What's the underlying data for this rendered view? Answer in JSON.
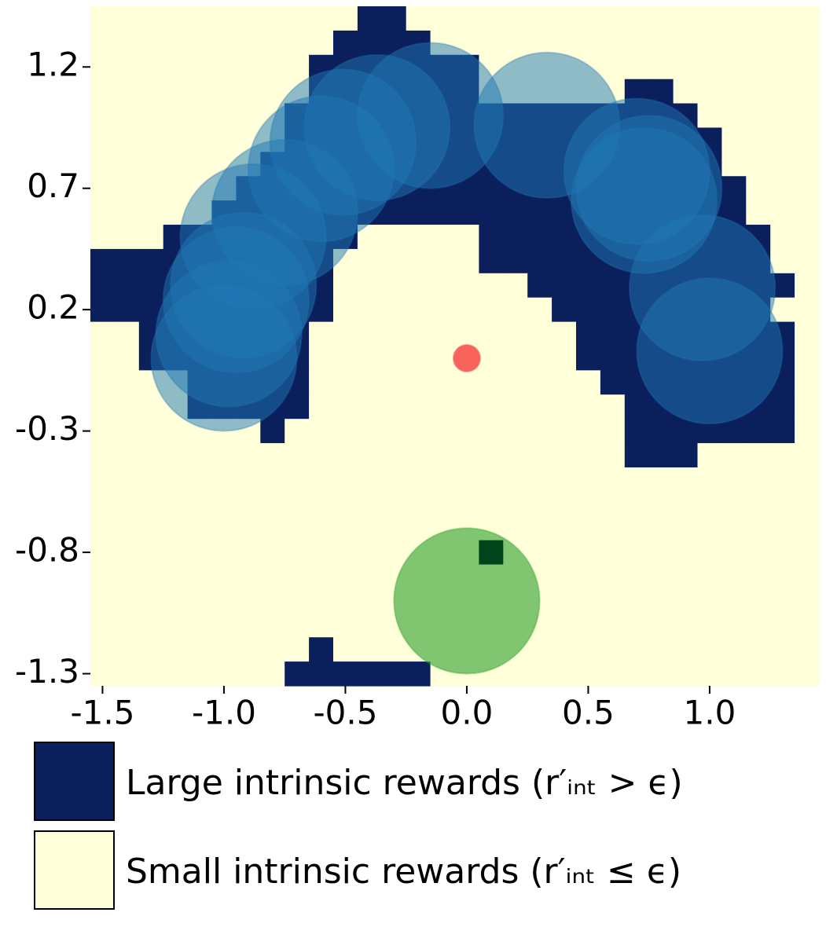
{
  "chart_data": {
    "type": "grid-map",
    "xlim": [
      -1.55,
      1.45
    ],
    "ylim": [
      -1.35,
      1.45
    ],
    "xticks": [
      -1.5,
      {
        "value": -1.0,
        "label": "-1.0"
      },
      -0.5,
      {
        "value": 0.0,
        "label": "0.0"
      },
      0.5,
      {
        "value": 1.0,
        "label": "1.0"
      }
    ],
    "yticks": [
      1.2,
      0.7,
      0.2,
      -0.3,
      -0.8,
      -1.3
    ],
    "z": [
      [
        0,
        0,
        0,
        0,
        0,
        0,
        0,
        0,
        0,
        0,
        0,
        1,
        1,
        0,
        0,
        0,
        0,
        0,
        0,
        0,
        0,
        0,
        0,
        0,
        0,
        0,
        0,
        0,
        0,
        0
      ],
      [
        0,
        0,
        0,
        0,
        0,
        0,
        0,
        0,
        0,
        0,
        1,
        1,
        1,
        1,
        0,
        0,
        0,
        0,
        0,
        0,
        0,
        0,
        0,
        0,
        0,
        0,
        0,
        0,
        0,
        0
      ],
      [
        0,
        0,
        0,
        0,
        0,
        0,
        0,
        0,
        0,
        1,
        1,
        1,
        1,
        1,
        1,
        1,
        0,
        0,
        0,
        0,
        0,
        0,
        0,
        0,
        0,
        0,
        0,
        0,
        0,
        0
      ],
      [
        0,
        0,
        0,
        0,
        0,
        0,
        0,
        0,
        0,
        1,
        1,
        1,
        1,
        1,
        1,
        1,
        0,
        0,
        0,
        0,
        0,
        0,
        1,
        1,
        0,
        0,
        0,
        0,
        0,
        0
      ],
      [
        0,
        0,
        0,
        0,
        0,
        0,
        0,
        0,
        1,
        1,
        1,
        1,
        1,
        1,
        1,
        1,
        1,
        1,
        1,
        1,
        1,
        1,
        1,
        1,
        1,
        0,
        0,
        0,
        0,
        0
      ],
      [
        0,
        0,
        0,
        0,
        0,
        0,
        0,
        0,
        1,
        1,
        1,
        1,
        1,
        1,
        1,
        1,
        1,
        1,
        1,
        1,
        1,
        1,
        1,
        1,
        1,
        1,
        0,
        0,
        0,
        0
      ],
      [
        0,
        0,
        0,
        0,
        0,
        0,
        0,
        1,
        1,
        1,
        1,
        1,
        1,
        1,
        1,
        1,
        1,
        1,
        1,
        1,
        1,
        1,
        1,
        1,
        1,
        1,
        0,
        0,
        0,
        0
      ],
      [
        0,
        0,
        0,
        0,
        0,
        0,
        1,
        1,
        1,
        1,
        1,
        1,
        1,
        1,
        1,
        1,
        1,
        1,
        1,
        1,
        1,
        1,
        1,
        1,
        1,
        1,
        1,
        0,
        0,
        0
      ],
      [
        0,
        0,
        0,
        0,
        0,
        1,
        1,
        1,
        1,
        1,
        1,
        1,
        1,
        1,
        1,
        1,
        1,
        1,
        1,
        1,
        1,
        1,
        1,
        1,
        1,
        1,
        1,
        0,
        0,
        0
      ],
      [
        0,
        0,
        0,
        1,
        1,
        1,
        1,
        1,
        1,
        1,
        1,
        0,
        0,
        0,
        0,
        0,
        1,
        1,
        1,
        1,
        1,
        1,
        1,
        1,
        1,
        1,
        1,
        1,
        0,
        0
      ],
      [
        1,
        1,
        1,
        1,
        1,
        1,
        1,
        1,
        1,
        1,
        0,
        0,
        0,
        0,
        0,
        0,
        1,
        1,
        1,
        1,
        1,
        1,
        1,
        1,
        1,
        1,
        1,
        1,
        0,
        0
      ],
      [
        1,
        1,
        1,
        1,
        1,
        1,
        1,
        1,
        1,
        1,
        0,
        0,
        0,
        0,
        0,
        0,
        0,
        0,
        1,
        1,
        1,
        1,
        1,
        1,
        1,
        1,
        1,
        1,
        1,
        0
      ],
      [
        1,
        1,
        1,
        1,
        1,
        1,
        1,
        1,
        1,
        1,
        0,
        0,
        0,
        0,
        0,
        0,
        0,
        0,
        0,
        1,
        1,
        1,
        1,
        1,
        1,
        1,
        1,
        1,
        0,
        0
      ],
      [
        0,
        0,
        1,
        1,
        1,
        1,
        1,
        1,
        1,
        0,
        0,
        0,
        0,
        0,
        0,
        0,
        0,
        0,
        0,
        0,
        1,
        1,
        1,
        1,
        1,
        1,
        1,
        1,
        1,
        0
      ],
      [
        0,
        0,
        1,
        1,
        1,
        1,
        1,
        1,
        1,
        0,
        0,
        0,
        0,
        0,
        0,
        0,
        0,
        0,
        0,
        0,
        1,
        1,
        1,
        1,
        1,
        1,
        1,
        1,
        1,
        0
      ],
      [
        0,
        0,
        0,
        0,
        1,
        1,
        1,
        1,
        1,
        0,
        0,
        0,
        0,
        0,
        0,
        0,
        0,
        0,
        0,
        0,
        0,
        1,
        1,
        1,
        1,
        1,
        1,
        1,
        1,
        0
      ],
      [
        0,
        0,
        0,
        0,
        1,
        1,
        1,
        1,
        1,
        0,
        0,
        0,
        0,
        0,
        0,
        0,
        0,
        0,
        0,
        0,
        0,
        0,
        1,
        1,
        1,
        1,
        1,
        1,
        1,
        0
      ],
      [
        0,
        0,
        0,
        0,
        0,
        0,
        0,
        1,
        0,
        0,
        0,
        0,
        0,
        0,
        0,
        0,
        0,
        0,
        0,
        0,
        0,
        0,
        1,
        1,
        1,
        1,
        1,
        1,
        1,
        0
      ],
      [
        0,
        0,
        0,
        0,
        0,
        0,
        0,
        0,
        0,
        0,
        0,
        0,
        0,
        0,
        0,
        0,
        0,
        0,
        0,
        0,
        0,
        0,
        1,
        1,
        1,
        0,
        0,
        0,
        0,
        0
      ],
      [
        0,
        0,
        0,
        0,
        0,
        0,
        0,
        0,
        0,
        0,
        0,
        0,
        0,
        0,
        0,
        0,
        0,
        0,
        0,
        0,
        0,
        0,
        0,
        0,
        0,
        0,
        0,
        0,
        0,
        0
      ],
      [
        0,
        0,
        0,
        0,
        0,
        0,
        0,
        0,
        0,
        0,
        0,
        0,
        0,
        0,
        0,
        0,
        0,
        0,
        0,
        0,
        0,
        0,
        0,
        0,
        0,
        0,
        0,
        0,
        0,
        0
      ],
      [
        0,
        0,
        0,
        0,
        0,
        0,
        0,
        0,
        0,
        0,
        0,
        0,
        0,
        0,
        0,
        0,
        0,
        0,
        0,
        0,
        0,
        0,
        0,
        0,
        0,
        0,
        0,
        0,
        0,
        0
      ],
      [
        0,
        0,
        0,
        0,
        0,
        0,
        0,
        0,
        0,
        0,
        0,
        0,
        0,
        0,
        0,
        0,
        0,
        0,
        0,
        0,
        0,
        0,
        0,
        0,
        0,
        0,
        0,
        0,
        0,
        0
      ],
      [
        0,
        0,
        0,
        0,
        0,
        0,
        0,
        0,
        0,
        0,
        0,
        0,
        0,
        0,
        0,
        0,
        0,
        0,
        0,
        0,
        0,
        0,
        0,
        0,
        0,
        0,
        0,
        0,
        0,
        0
      ],
      [
        0,
        0,
        0,
        0,
        0,
        0,
        0,
        0,
        0,
        0,
        0,
        0,
        0,
        0,
        0,
        0,
        0,
        0,
        0,
        0,
        0,
        0,
        0,
        0,
        0,
        0,
        0,
        0,
        0,
        0
      ],
      [
        0,
        0,
        0,
        0,
        0,
        0,
        0,
        0,
        0,
        0,
        0,
        0,
        0,
        0,
        0,
        0,
        0,
        0,
        0,
        0,
        0,
        0,
        0,
        0,
        0,
        0,
        0,
        0,
        0,
        0
      ],
      [
        0,
        0,
        0,
        0,
        0,
        0,
        0,
        0,
        0,
        1,
        0,
        0,
        0,
        0,
        0,
        0,
        0,
        0,
        0,
        0,
        0,
        0,
        0,
        0,
        0,
        0,
        0,
        0,
        0,
        0
      ],
      [
        0,
        0,
        0,
        0,
        0,
        0,
        0,
        0,
        1,
        1,
        1,
        1,
        1,
        1,
        0,
        0,
        0,
        0,
        0,
        0,
        0,
        0,
        0,
        0,
        0,
        0,
        0,
        0,
        0,
        0
      ]
    ],
    "legend": [
      {
        "name": "Large intrinsic rewards (r′ᵢₙₜ > ϵ)",
        "value": 1,
        "color": "#0b1f5c"
      },
      {
        "name": "Small intrinsic rewards (r′ᵢₙₜ ≤ ϵ)",
        "value": 0,
        "color": "#ffffd9"
      }
    ],
    "markers": [
      {
        "shape": "circle",
        "color": "#1f77b4",
        "opacity": 0.5,
        "radius": 0.3,
        "x": [
          -1.0,
          -0.98,
          -0.95,
          -0.92,
          -0.88,
          -0.75,
          -0.6,
          -0.51,
          -0.37,
          -0.15,
          0.33,
          0.7,
          0.75,
          0.73,
          0.97,
          1.0
        ],
        "y": [
          0.0,
          0.1,
          0.24,
          0.3,
          0.5,
          0.6,
          0.78,
          0.89,
          0.95,
          1.0,
          0.96,
          0.77,
          0.7,
          0.65,
          0.29,
          0.03
        ]
      },
      {
        "shape": "circle",
        "color": "#2ca02c",
        "opacity": 0.6,
        "radius": 0.3,
        "x": [
          0.0
        ],
        "y": [
          -1.0
        ]
      },
      {
        "shape": "square",
        "color": "#00441b",
        "opacity": 1,
        "radius": 0.05,
        "x": [
          0.1
        ],
        "y": [
          -0.8
        ]
      },
      {
        "shape": "circle",
        "color": "#f8635b",
        "opacity": 1,
        "radius": 0.055,
        "x": [
          0.0
        ],
        "y": [
          0.0
        ]
      }
    ]
  }
}
